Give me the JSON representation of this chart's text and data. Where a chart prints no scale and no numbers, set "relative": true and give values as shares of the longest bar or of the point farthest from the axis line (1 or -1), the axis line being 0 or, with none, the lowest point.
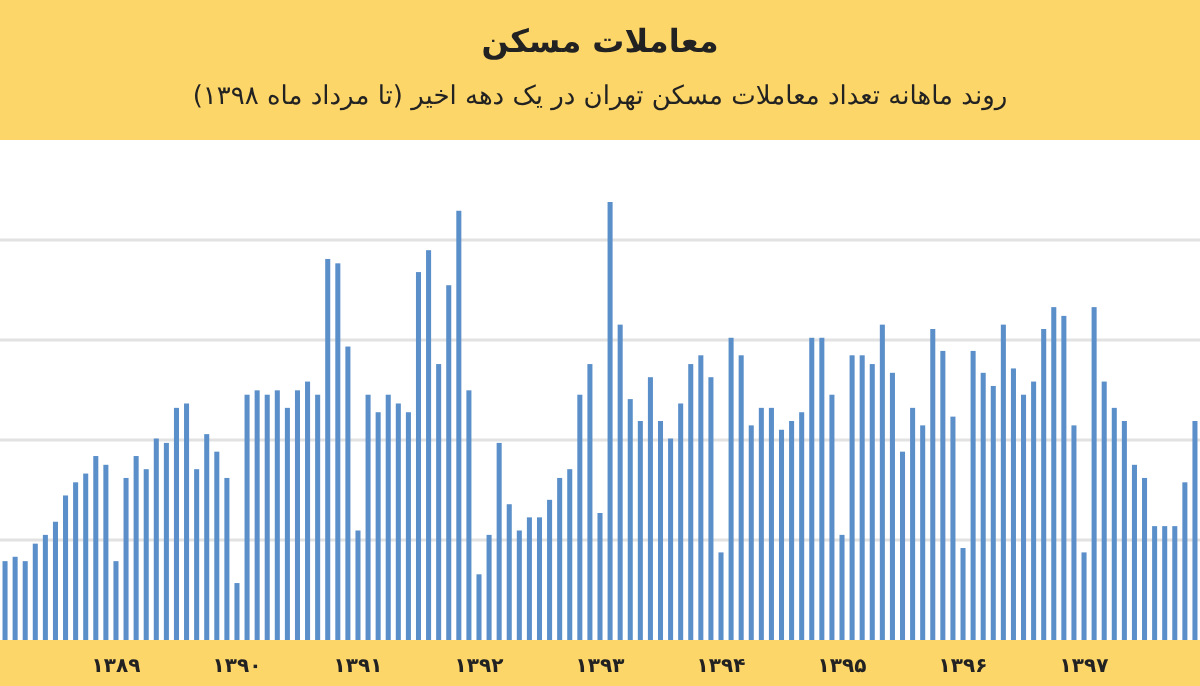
{
  "chart_data": {
    "type": "bar",
    "title": "معاملات مسکن",
    "subtitle": "روند ماهانه تعداد معاملات مسکن تهران در یک دهه اخیر (تا مرداد ماه ۱۳۹۸)",
    "relative": true,
    "grid": true,
    "color": "#5b8fc9",
    "categories": [
      null,
      null,
      null,
      null,
      null,
      null,
      null,
      null,
      null,
      null,
      null,
      "۱۳۸۹",
      null,
      null,
      null,
      null,
      null,
      null,
      null,
      null,
      null,
      null,
      null,
      "۱۳۹۰",
      null,
      null,
      null,
      null,
      null,
      null,
      null,
      null,
      null,
      null,
      null,
      "۱۳۹۱",
      null,
      null,
      null,
      null,
      null,
      null,
      null,
      null,
      null,
      null,
      null,
      "۱۳۹۲",
      null,
      null,
      null,
      null,
      null,
      null,
      null,
      null,
      null,
      null,
      null,
      "۱۳۹۳",
      null,
      null,
      null,
      null,
      null,
      null,
      null,
      null,
      null,
      null,
      null,
      "۱۳۹۴",
      null,
      null,
      null,
      null,
      null,
      null,
      null,
      null,
      null,
      null,
      null,
      "۱۳۹۵",
      null,
      null,
      null,
      null,
      null,
      null,
      null,
      null,
      null,
      null,
      null,
      "۱۳۹۶",
      null,
      null,
      null,
      null,
      null,
      null,
      null,
      null,
      null,
      null,
      null,
      "۱۳۹۷",
      null,
      null,
      null,
      null,
      null,
      null,
      null,
      null,
      null,
      null,
      null
    ],
    "values": [
      0.18,
      0.19,
      0.18,
      0.22,
      0.24,
      0.27,
      0.33,
      0.36,
      0.38,
      0.42,
      0.4,
      0.18,
      0.37,
      0.42,
      0.39,
      0.46,
      0.45,
      0.53,
      0.54,
      0.39,
      0.47,
      0.43,
      0.37,
      0.13,
      0.56,
      0.57,
      0.56,
      0.57,
      0.53,
      0.57,
      0.59,
      0.56,
      0.87,
      0.86,
      0.67,
      0.25,
      0.56,
      0.52,
      0.56,
      0.54,
      0.52,
      0.84,
      0.89,
      0.63,
      0.81,
      0.98,
      0.57,
      0.15,
      0.24,
      0.45,
      0.31,
      0.25,
      0.28,
      0.28,
      0.32,
      0.37,
      0.39,
      0.56,
      0.63,
      0.29,
      1.0,
      0.72,
      0.55,
      0.5,
      0.6,
      0.5,
      0.46,
      0.54,
      0.63,
      0.65,
      0.6,
      0.2,
      0.69,
      0.65,
      0.49,
      0.53,
      0.53,
      0.48,
      0.5,
      0.52,
      0.69,
      0.69,
      0.56,
      0.24,
      0.65,
      0.65,
      0.63,
      0.72,
      0.61,
      0.43,
      0.53,
      0.49,
      0.71,
      0.66,
      0.51,
      0.21,
      0.66,
      0.61,
      0.58,
      0.72,
      0.62,
      0.56,
      0.59,
      0.71,
      0.76,
      0.74,
      0.49,
      0.2,
      0.76,
      0.59,
      0.53,
      0.5,
      0.4,
      0.37,
      0.26,
      0.26,
      0.26,
      0.36,
      0.5
    ]
  }
}
